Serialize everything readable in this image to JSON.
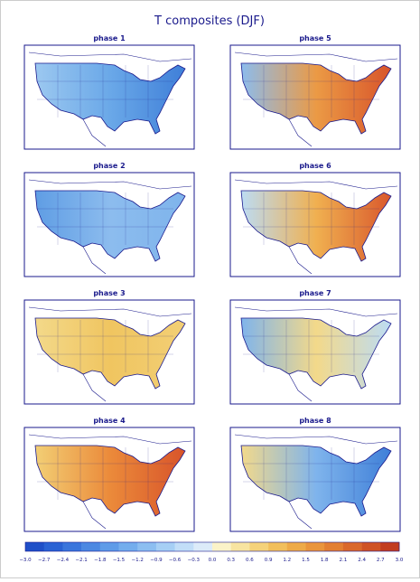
{
  "title": "T composites (DJF)",
  "panels": [
    {
      "title": "phase 1",
      "colors": [
        "#9cc8f0",
        "#6aa8e8",
        "#3f7fd8"
      ]
    },
    {
      "title": "phase 5",
      "colors": [
        "#8cbcee",
        "#eb9a45",
        "#d8542a"
      ]
    },
    {
      "title": "phase 2",
      "colors": [
        "#5f9de4",
        "#8cbcee",
        "#7fb4ec"
      ]
    },
    {
      "title": "phase 6",
      "colors": [
        "#bcdcf4",
        "#f0b050",
        "#d9582c"
      ]
    },
    {
      "title": "phase 3",
      "colors": [
        "#f3d98a",
        "#f0c560",
        "#f2cf75"
      ]
    },
    {
      "title": "phase 7",
      "colors": [
        "#7fb4ec",
        "#f3d98a",
        "#bcdcf4"
      ]
    },
    {
      "title": "phase 4",
      "colors": [
        "#f2cf75",
        "#eb8a3a",
        "#d8542a"
      ]
    },
    {
      "title": "phase 8",
      "colors": [
        "#f3d98a",
        "#7fb4ec",
        "#3f7fd8"
      ]
    }
  ],
  "colorbar": {
    "ticks": [
      "−3.0",
      "−2.7",
      "−2.4",
      "−2.1",
      "−1.8",
      "−1.5",
      "−1.2",
      "−0.9",
      "−0.6",
      "−0.3",
      "0.0",
      "0.3",
      "0.6",
      "0.9",
      "1.2",
      "1.5",
      "1.8",
      "2.1",
      "2.4",
      "2.7",
      "3.0"
    ],
    "colors": [
      "#1f4fc8",
      "#2a62d4",
      "#3a75dc",
      "#4c88e2",
      "#5f9be8",
      "#74aded",
      "#8cbef1",
      "#a6cff5",
      "#c2def8",
      "#dcebf9",
      "#fbf3c8",
      "#f8e4a0",
      "#f5d27a",
      "#f2bf5c",
      "#eeaa48",
      "#ea953c",
      "#e37f33",
      "#da682c",
      "#cf5226",
      "#c23c20"
    ]
  }
}
